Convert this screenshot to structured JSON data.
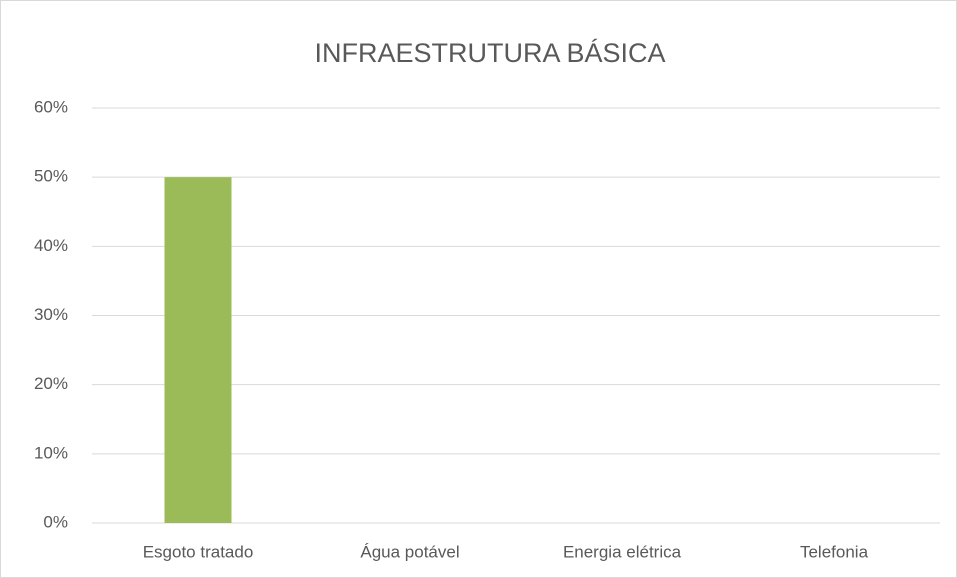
{
  "chart_data": {
    "type": "bar",
    "title": "INFRAESTRUTURA BÁSICA",
    "categories": [
      "Esgoto tratado",
      "Água potável",
      "Energia elétrica",
      "Telefonia"
    ],
    "values": [
      50,
      0,
      0,
      0
    ],
    "color": "#9bbb59",
    "ylim": [
      0,
      60
    ],
    "yticks": [
      {
        "value": 0,
        "label": "0%"
      },
      {
        "value": 10,
        "label": "10%"
      },
      {
        "value": 20,
        "label": "20%"
      },
      {
        "value": 30,
        "label": "30%"
      },
      {
        "value": 40,
        "label": "40%"
      },
      {
        "value": 50,
        "label": "50%"
      },
      {
        "value": 60,
        "label": "60%"
      }
    ],
    "grid": true
  }
}
